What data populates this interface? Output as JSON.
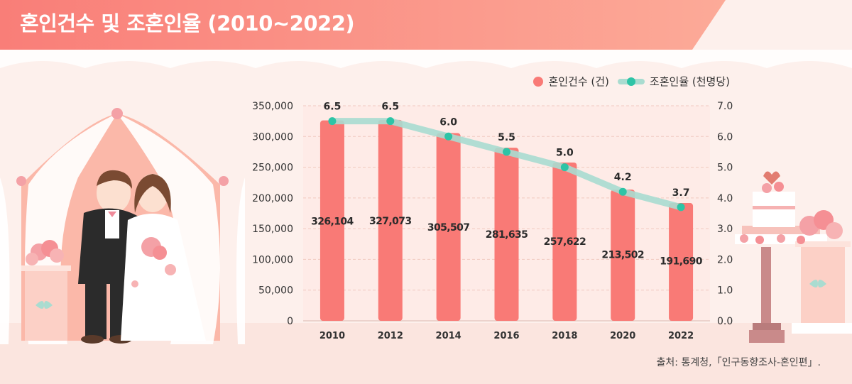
{
  "title": "혼인건수 및 조혼인율 (2010~2022)",
  "legend": {
    "bar_label": "혼인건수 (건)",
    "line_label": "조혼인율 (천명당)"
  },
  "source": "출처: 통계청,「인구동향조사-혼인편」.",
  "colors": {
    "bar": "#f97a76",
    "line": "#a9dcd0",
    "point": "#2ec4a6",
    "title_bg": "#fb8f85"
  },
  "chart_data": {
    "type": "bar",
    "categories": [
      "2010",
      "2012",
      "2014",
      "2016",
      "2018",
      "2020",
      "2022"
    ],
    "series": [
      {
        "name": "혼인건수 (건)",
        "type": "bar",
        "axis": "left",
        "values": [
          326104,
          327073,
          305507,
          281635,
          257622,
          213502,
          191690
        ],
        "labels": [
          "326,104",
          "327,073",
          "305,507",
          "281,635",
          "257,622",
          "213,502",
          "191,690"
        ]
      },
      {
        "name": "조혼인율 (천명당)",
        "type": "line",
        "axis": "right",
        "values": [
          6.5,
          6.5,
          6.0,
          5.5,
          5.0,
          4.2,
          3.7
        ],
        "labels": [
          "6.5",
          "6.5",
          "6.0",
          "5.5",
          "5.0",
          "4.2",
          "3.7"
        ]
      }
    ],
    "y_left": {
      "range": [
        0,
        350000
      ],
      "ticks": [
        "0",
        "50,000",
        "100,000",
        "150,000",
        "200,000",
        "250,000",
        "300,000",
        "350,000"
      ]
    },
    "y_right": {
      "range": [
        0,
        7
      ],
      "ticks": [
        "0.0",
        "1.0",
        "2.0",
        "3.0",
        "4.0",
        "5.0",
        "6.0",
        "7.0"
      ]
    },
    "grid": true,
    "legend_position": "top-right"
  }
}
